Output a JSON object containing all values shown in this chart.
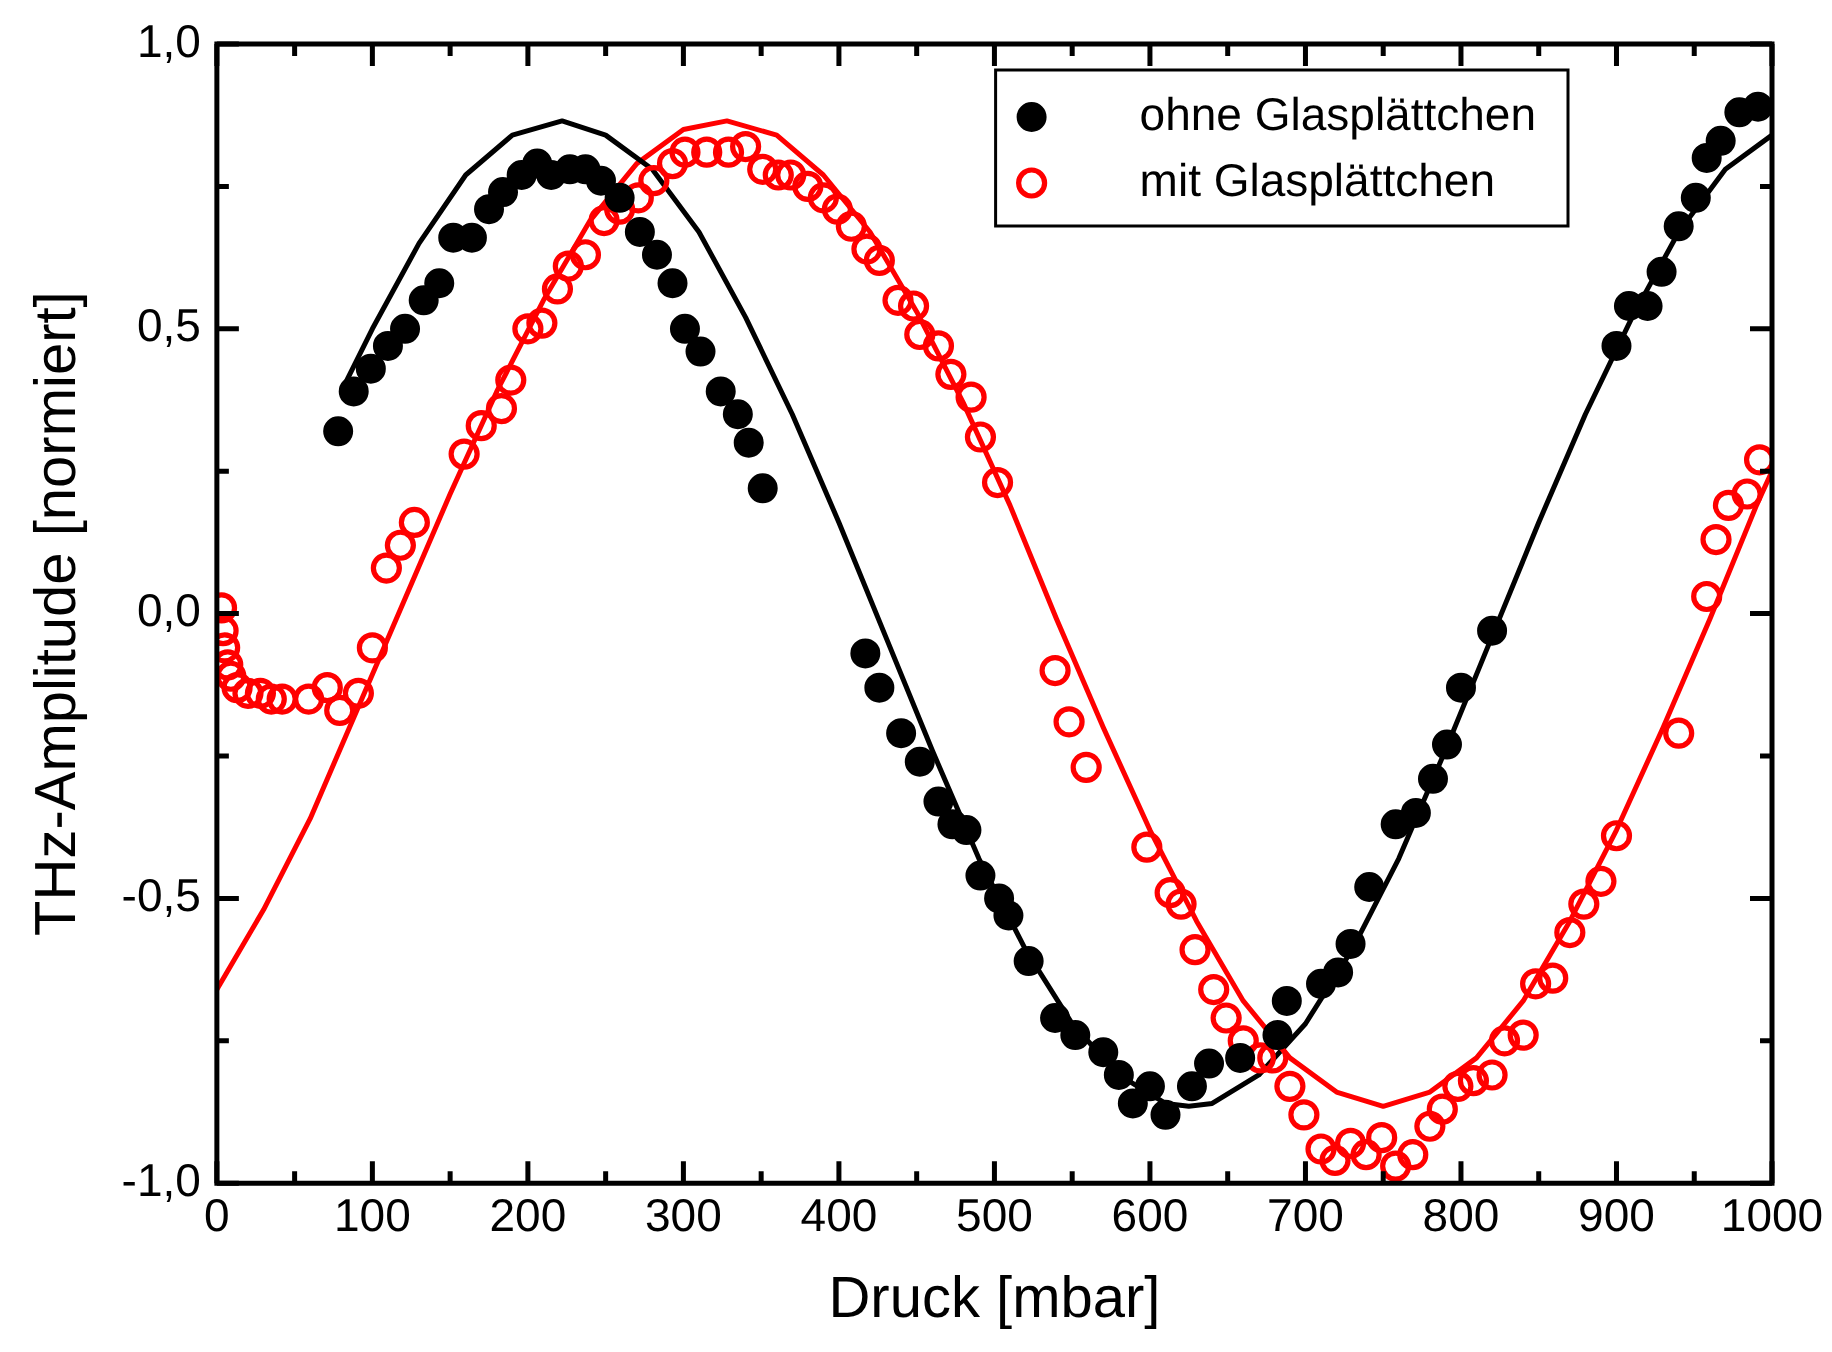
{
  "chart_data": {
    "type": "scatter",
    "xlabel": "Druck [mbar]",
    "ylabel": "THz-Amplitude [normiert]",
    "xlim": [
      0,
      1000
    ],
    "ylim": [
      -1,
      1
    ],
    "xticks": [
      0,
      {
        "value": 50,
        "label": null
      },
      100,
      {
        "value": 150,
        "label": null
      },
      200,
      {
        "value": 250,
        "label": null
      },
      300,
      {
        "value": 350,
        "label": null
      },
      400,
      {
        "value": 450,
        "label": null
      },
      500,
      {
        "value": 550,
        "label": null
      },
      600,
      {
        "value": 650,
        "label": null
      },
      700,
      {
        "value": 750,
        "label": null
      },
      800,
      {
        "value": 850,
        "label": null
      },
      900,
      {
        "value": 950,
        "label": null
      },
      1000
    ],
    "yticks": [
      {
        "value": -1,
        "label": "-1,0"
      },
      {
        "value": -0.75,
        "label": null
      },
      {
        "value": -0.5,
        "label": "-0,5"
      },
      {
        "value": -0.25,
        "label": null
      },
      {
        "value": 0,
        "label": "0,0"
      },
      {
        "value": 0.25,
        "label": null
      },
      {
        "value": 0.5,
        "label": "0,5"
      },
      {
        "value": 0.75,
        "label": null
      },
      {
        "value": 1,
        "label": "1,0"
      }
    ],
    "grid": false,
    "legend": "top right",
    "series": [
      {
        "name": "ohne Glasplättchen",
        "marker": "circle",
        "color": "#000000",
        "x": [
          78,
          88,
          99,
          110,
          121,
          133,
          143,
          152,
          164,
          175,
          184,
          196,
          206,
          215,
          227,
          237,
          247,
          259,
          272,
          283,
          293,
          301,
          311,
          324,
          335,
          342,
          351,
          417,
          426,
          440,
          452,
          464,
          473,
          482,
          491,
          503,
          509,
          522,
          539,
          552,
          570,
          580,
          589,
          600,
          610,
          627,
          638,
          658,
          682,
          688,
          710,
          721,
          729,
          741,
          758,
          771,
          782,
          791,
          800,
          820,
          900,
          908,
          920,
          929,
          940,
          951,
          958,
          967,
          979,
          991
        ],
        "values": [
          0.32,
          0.39,
          0.43,
          0.47,
          0.5,
          0.55,
          0.58,
          0.66,
          0.66,
          0.71,
          0.74,
          0.77,
          0.79,
          0.77,
          0.78,
          0.78,
          0.76,
          0.73,
          0.67,
          0.63,
          0.58,
          0.5,
          0.46,
          0.39,
          0.35,
          0.3,
          0.22,
          -0.07,
          -0.13,
          -0.21,
          -0.26,
          -0.33,
          -0.37,
          -0.38,
          -0.46,
          -0.5,
          -0.53,
          -0.61,
          -0.71,
          -0.74,
          -0.77,
          -0.81,
          -0.86,
          -0.83,
          -0.88,
          -0.83,
          -0.79,
          -0.78,
          -0.74,
          -0.68,
          -0.65,
          -0.63,
          -0.58,
          -0.48,
          -0.37,
          -0.35,
          -0.29,
          -0.23,
          -0.13,
          -0.03,
          0.47,
          0.54,
          0.54,
          0.6,
          0.68,
          0.73,
          0.8,
          0.83,
          0.88,
          0.89
        ]
      },
      {
        "name": "mit Glasplättchen",
        "marker": "circle",
        "color": "#ff0000",
        "x": [
          3,
          4,
          5,
          7,
          9,
          13,
          20,
          28,
          35,
          42,
          59,
          71,
          79,
          91,
          100,
          109,
          118,
          127,
          159,
          170,
          183,
          189,
          200,
          209,
          219,
          226,
          237,
          249,
          259,
          271,
          281,
          293,
          301,
          315,
          329,
          340,
          351,
          361,
          369,
          380,
          390,
          399,
          408,
          418,
          426,
          438,
          448,
          452,
          464,
          472,
          485,
          491,
          502,
          539,
          548,
          559,
          598,
          613,
          620,
          629,
          641,
          649,
          660,
          671,
          679,
          690,
          699,
          710,
          719,
          729,
          739,
          749,
          758,
          769,
          780,
          788,
          798,
          808,
          820,
          828,
          840,
          848,
          859,
          870,
          879,
          890,
          900,
          940,
          958,
          964,
          972,
          984,
          992
        ],
        "values": [
          0.01,
          -0.03,
          -0.06,
          -0.09,
          -0.11,
          -0.13,
          -0.14,
          -0.14,
          -0.15,
          -0.15,
          -0.15,
          -0.13,
          -0.17,
          -0.14,
          -0.06,
          0.08,
          0.12,
          0.16,
          0.28,
          0.33,
          0.36,
          0.41,
          0.5,
          0.51,
          0.57,
          0.61,
          0.63,
          0.69,
          0.71,
          0.73,
          0.76,
          0.79,
          0.81,
          0.81,
          0.81,
          0.82,
          0.78,
          0.77,
          0.77,
          0.75,
          0.73,
          0.71,
          0.68,
          0.64,
          0.62,
          0.55,
          0.54,
          0.49,
          0.47,
          0.42,
          0.38,
          0.31,
          0.23,
          -0.1,
          -0.19,
          -0.27,
          -0.41,
          -0.49,
          -0.51,
          -0.59,
          -0.66,
          -0.71,
          -0.75,
          -0.78,
          -0.78,
          -0.83,
          -0.88,
          -0.94,
          -0.96,
          -0.93,
          -0.95,
          -0.92,
          -0.97,
          -0.95,
          -0.9,
          -0.87,
          -0.83,
          -0.82,
          -0.81,
          -0.75,
          -0.74,
          -0.65,
          -0.64,
          -0.56,
          -0.51,
          -0.47,
          -0.39,
          -0.21,
          0.03,
          0.13,
          0.19,
          0.21,
          0.27
        ]
      },
      {
        "type": "line",
        "marker": "none",
        "line_style": "solid",
        "color": "#000000",
        "x": [
          80,
          100,
          130,
          160,
          190,
          222,
          250,
          280,
          310,
          340,
          370,
          400,
          430,
          460,
          490,
          520,
          550,
          580,
          610,
          625,
          640,
          670,
          700,
          730,
          760,
          790,
          820,
          850,
          880,
          910,
          940,
          970,
          1000
        ],
        "values": [
          0.39,
          0.5,
          0.65,
          0.77,
          0.84,
          0.865,
          0.84,
          0.78,
          0.67,
          0.52,
          0.35,
          0.16,
          -0.04,
          -0.24,
          -0.43,
          -0.59,
          -0.72,
          -0.81,
          -0.86,
          -0.865,
          -0.86,
          -0.81,
          -0.72,
          -0.59,
          -0.43,
          -0.24,
          -0.04,
          0.16,
          0.35,
          0.52,
          0.67,
          0.78,
          0.84
        ]
      },
      {
        "type": "line",
        "marker": "none",
        "line_style": "solid",
        "color": "#ff0000",
        "x": [
          0,
          30,
          60,
          90,
          120,
          150,
          180,
          210,
          240,
          270,
          300,
          328,
          360,
          390,
          420,
          450,
          480,
          510,
          540,
          570,
          600,
          630,
          660,
          690,
          720,
          750,
          780,
          810,
          840,
          870,
          900,
          930,
          960,
          990,
          1000
        ],
        "values": [
          -0.66,
          -0.52,
          -0.36,
          -0.17,
          0.02,
          0.21,
          0.39,
          0.55,
          0.69,
          0.79,
          0.85,
          0.865,
          0.84,
          0.77,
          0.67,
          0.53,
          0.37,
          0.19,
          -0.01,
          -0.2,
          -0.38,
          -0.54,
          -0.68,
          -0.78,
          -0.84,
          -0.865,
          -0.84,
          -0.78,
          -0.68,
          -0.54,
          -0.38,
          -0.2,
          -0.01,
          0.19,
          0.25
        ]
      }
    ]
  }
}
